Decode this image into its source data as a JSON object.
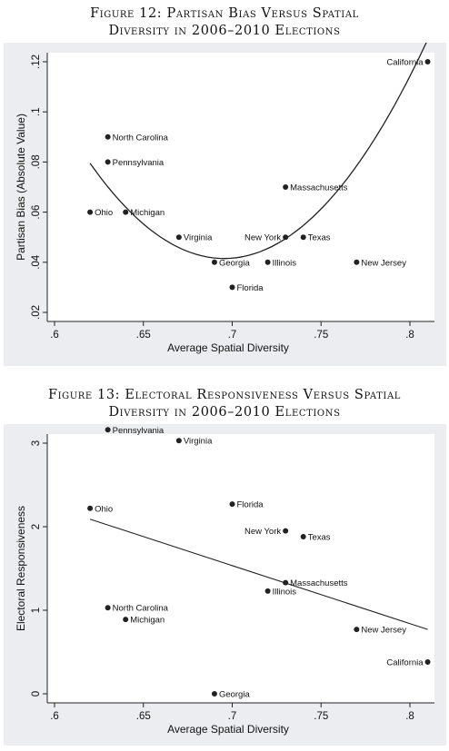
{
  "figures": [
    {
      "title_line1": "Figure 12: Partisan Bias Versus Spatial",
      "title_line2": "Diversity in 2006–2010 Elections",
      "chart_data": {
        "type": "scatter",
        "xlabel": "Average Spatial Diversity",
        "ylabel": "Partisan Bias (Absolute Value)",
        "xlim": [
          0.6,
          0.81
        ],
        "ylim": [
          0.02,
          0.12
        ],
        "xticks": [
          ".6",
          ".65",
          ".7",
          ".75",
          ".8"
        ],
        "yticks": [
          ".02",
          ".04",
          ".06",
          ".08",
          ".1",
          ".12"
        ],
        "xtick_values": [
          0.6,
          0.65,
          0.7,
          0.75,
          0.8
        ],
        "ytick_values": [
          0.02,
          0.04,
          0.06,
          0.08,
          0.1,
          0.12
        ],
        "grid": false,
        "points": [
          {
            "label": "California",
            "x": 0.81,
            "y": 0.12,
            "label_pos": "left"
          },
          {
            "label": "North Carolina",
            "x": 0.63,
            "y": 0.09,
            "label_pos": "right"
          },
          {
            "label": "Pennsylvania",
            "x": 0.63,
            "y": 0.08,
            "label_pos": "right"
          },
          {
            "label": "Massachusetts",
            "x": 0.73,
            "y": 0.07,
            "label_pos": "right"
          },
          {
            "label": "Ohio",
            "x": 0.62,
            "y": 0.06,
            "label_pos": "right"
          },
          {
            "label": "Michigan",
            "x": 0.64,
            "y": 0.06,
            "label_pos": "right"
          },
          {
            "label": "Virginia",
            "x": 0.67,
            "y": 0.05,
            "label_pos": "right"
          },
          {
            "label": "New York",
            "x": 0.73,
            "y": 0.05,
            "label_pos": "left"
          },
          {
            "label": "Texas",
            "x": 0.74,
            "y": 0.05,
            "label_pos": "right"
          },
          {
            "label": "Georgia",
            "x": 0.69,
            "y": 0.04,
            "label_pos": "right"
          },
          {
            "label": "Illinois",
            "x": 0.72,
            "y": 0.04,
            "label_pos": "right"
          },
          {
            "label": "New Jersey",
            "x": 0.77,
            "y": 0.04,
            "label_pos": "right"
          },
          {
            "label": "Florida",
            "x": 0.7,
            "y": 0.03,
            "label_pos": "right"
          }
        ],
        "fit": {
          "type": "quadratic",
          "x_range": [
            0.62,
            0.818
          ],
          "coefficients": [
            0.0415,
            0.702,
            6.66
          ]
        }
      }
    },
    {
      "title_line1": "Figure 13: Electoral Responsiveness Versus Spatial",
      "title_line2": "Diversity in 2006–2010 Elections",
      "chart_data": {
        "type": "scatter",
        "xlabel": "Average Spatial Diversity",
        "ylabel": "Electoral Responsiveness",
        "xlim": [
          0.6,
          0.81
        ],
        "ylim": [
          0,
          3
        ],
        "xticks": [
          ".6",
          ".65",
          ".7",
          ".75",
          ".8"
        ],
        "yticks": [
          "0",
          "1",
          "2",
          "3"
        ],
        "xtick_values": [
          0.6,
          0.65,
          0.7,
          0.75,
          0.8
        ],
        "ytick_values": [
          0,
          1,
          2,
          3
        ],
        "grid": false,
        "points": [
          {
            "label": "Pennsylvania",
            "x": 0.63,
            "y": 3.16,
            "label_pos": "right"
          },
          {
            "label": "Virginia",
            "x": 0.67,
            "y": 3.03,
            "label_pos": "right"
          },
          {
            "label": "Ohio",
            "x": 0.62,
            "y": 2.22,
            "label_pos": "right"
          },
          {
            "label": "Florida",
            "x": 0.7,
            "y": 2.27,
            "label_pos": "right"
          },
          {
            "label": "New York",
            "x": 0.73,
            "y": 1.95,
            "label_pos": "left"
          },
          {
            "label": "Texas",
            "x": 0.74,
            "y": 1.88,
            "label_pos": "right"
          },
          {
            "label": "Massachusetts",
            "x": 0.73,
            "y": 1.33,
            "label_pos": "right"
          },
          {
            "label": "Illinois",
            "x": 0.72,
            "y": 1.23,
            "label_pos": "right"
          },
          {
            "label": "North Carolina",
            "x": 0.63,
            "y": 1.03,
            "label_pos": "right"
          },
          {
            "label": "Michigan",
            "x": 0.64,
            "y": 0.89,
            "label_pos": "right"
          },
          {
            "label": "New Jersey",
            "x": 0.77,
            "y": 0.77,
            "label_pos": "right"
          },
          {
            "label": "California",
            "x": 0.81,
            "y": 0.38,
            "label_pos": "left"
          },
          {
            "label": "Georgia",
            "x": 0.69,
            "y": 0.0,
            "label_pos": "right"
          }
        ],
        "fit": {
          "type": "linear",
          "x_range": [
            0.62,
            0.81
          ],
          "endpoints_y": [
            2.09,
            0.77
          ]
        }
      }
    }
  ]
}
